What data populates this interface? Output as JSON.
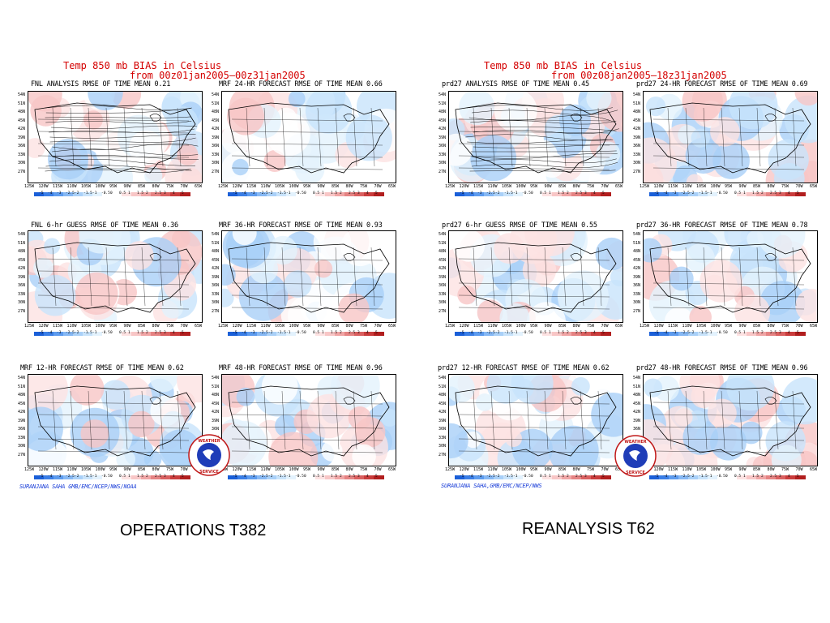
{
  "left": {
    "title_line1": "Temp  850  mb  BIAS  in  Celsius",
    "title_line2": "from  00z01jan2005—00z31jan2005",
    "credit": "SURANJANA SAHA  GMB/EMC/NCEP/NWS/NOAA",
    "caption": "OPERATIONS T382",
    "panels": [
      {
        "title": "FNL ANALYSIS RMSE OF TIME MEAN 0.21"
      },
      {
        "title": "MRF 24-HR FORECAST RMSE OF TIME MEAN 0.66"
      },
      {
        "title": "FNL 6-hr GUESS RMSE OF TIME MEAN 0.36"
      },
      {
        "title": "MRF 36-HR FORECAST RMSE OF TIME MEAN 0.93"
      },
      {
        "title": "MRF 12-HR FORECAST RMSE OF TIME MEAN 0.62"
      },
      {
        "title": "MRF 48-HR FORECAST RMSE OF TIME MEAN 0.96"
      }
    ]
  },
  "right": {
    "title_line1": "Temp  850  mb  BIAS  in  Celsius",
    "title_line2": "from  00z08jan2005—18z31jan2005",
    "credit": "SURANJANA  SAHA,GMB/EMC/NCEP/NWS",
    "caption": "REANALYSIS T62",
    "panels": [
      {
        "title": "prd27 ANALYSIS RMSE OF TIME MEAN 0.45"
      },
      {
        "title": "prd27 24-HR FORECAST RMSE OF TIME MEAN 0.69"
      },
      {
        "title": "prd27 6-hr GUESS RMSE OF TIME MEAN 0.55"
      },
      {
        "title": "prd27 36-HR FORECAST RMSE OF TIME MEAN 0.78"
      },
      {
        "title": "prd27 12-HR FORECAST RMSE OF TIME MEAN 0.62"
      },
      {
        "title": "prd27 48-HR FORECAST RMSE OF TIME MEAN 0.96"
      }
    ]
  },
  "map_axes": {
    "lat_labels": [
      "54N",
      "51N",
      "48N",
      "45N",
      "42N",
      "39N",
      "36N",
      "33N",
      "30N",
      "27N"
    ],
    "lon_labels": [
      "125W",
      "120W",
      "115W",
      "110W",
      "105W",
      "100W",
      "95W",
      "90W",
      "85W",
      "80W",
      "75W",
      "70W",
      "65W"
    ]
  },
  "colorbar": {
    "ticks": [
      "-5",
      "-4",
      "-3",
      "-2.5",
      "-2",
      "-1.5",
      "-1",
      "-0.5",
      "0",
      "0.5",
      "1",
      "1.5",
      "2",
      "2.5",
      "3",
      "4",
      "5"
    ],
    "colors": [
      "#1a5fd8",
      "#3a7ee6",
      "#5d9bee",
      "#86b8f4",
      "#a9d0f8",
      "#c8e3fb",
      "#e3f2fd",
      "#ffffff",
      "#ffffff",
      "#fde2e2",
      "#f8c6c6",
      "#f0a5a5",
      "#e58383",
      "#d96060",
      "#c93c3c",
      "#b11e1e"
    ]
  },
  "logo": {
    "text": "NATIONAL WEATHER SERVICE",
    "icon": "nws-logo-icon"
  }
}
